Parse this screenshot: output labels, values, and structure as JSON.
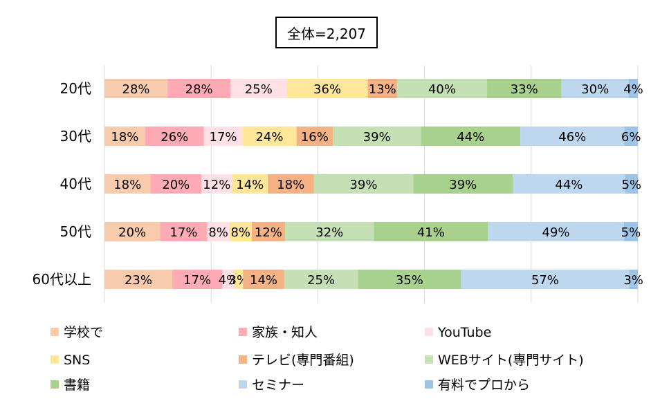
{
  "chart_data": {
    "type": "bar",
    "orientation": "horizontal",
    "stacked": true,
    "total_label": "全体=2,207",
    "categories": [
      "20代",
      "30代",
      "40代",
      "50代",
      "60代以上"
    ],
    "series": [
      {
        "name": "学校で",
        "color": "#F8CBAD",
        "values": [
          28,
          18,
          18,
          20,
          23
        ]
      },
      {
        "name": "家族・知人",
        "color": "#FFABB6",
        "values": [
          28,
          26,
          20,
          17,
          17
        ]
      },
      {
        "name": "YouTube",
        "color": "#FFE1E5",
        "values": [
          25,
          17,
          12,
          8,
          4
        ]
      },
      {
        "name": "SNS",
        "color": "#FFE699",
        "values": [
          36,
          24,
          14,
          8,
          3
        ]
      },
      {
        "name": "テレビ(専門番組)",
        "color": "#F4B183",
        "values": [
          13,
          16,
          18,
          12,
          14
        ]
      },
      {
        "name": "WEBサイト(専門サイト)",
        "color": "#C5E0B4",
        "values": [
          40,
          39,
          39,
          32,
          25
        ]
      },
      {
        "name": "書籍",
        "color": "#A9D18E",
        "values": [
          33,
          44,
          39,
          41,
          35
        ]
      },
      {
        "name": "セミナー",
        "color": "#BDD7EE",
        "values": [
          30,
          46,
          44,
          49,
          57
        ]
      },
      {
        "name": "有料でプロから",
        "color": "#9DC3E6",
        "values": [
          4,
          6,
          5,
          5,
          3
        ]
      }
    ],
    "value_suffix": "%",
    "grid": true,
    "legend_position": "bottom"
  }
}
